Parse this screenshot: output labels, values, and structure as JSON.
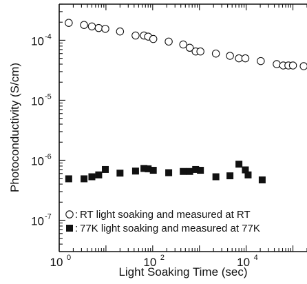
{
  "chart_data": {
    "type": "scatter",
    "x_scale": "log",
    "y_scale": "log",
    "xlim": [
      1,
      200000
    ],
    "ylim": [
      3e-08,
      0.0004
    ],
    "xlabel": "Light Soaking Time (sec)",
    "ylabel": "Photoconductivity (S/cm)",
    "x_ticks": [
      {
        "value": 1,
        "base": "10",
        "exp": "0"
      },
      {
        "value": 100,
        "base": "10",
        "exp": "2"
      },
      {
        "value": 10000,
        "base": "10",
        "exp": "4"
      }
    ],
    "y_ticks": [
      {
        "value": 1e-07,
        "base": "10",
        "exp": "-7"
      },
      {
        "value": 1e-06,
        "base": "10",
        "exp": "-6"
      },
      {
        "value": 1e-05,
        "base": "10",
        "exp": "-5"
      },
      {
        "value": 0.0001,
        "base": "10",
        "exp": "-4"
      }
    ],
    "legend_position": "bottom-left",
    "series": [
      {
        "name": "RT light soaking and measured at RT",
        "marker": "open-circle",
        "color": "#111111",
        "x": [
          1.6,
          3.4,
          5.0,
          7.0,
          9.7,
          20,
          43,
          65,
          80,
          103,
          220,
          450,
          620,
          830,
          1050,
          2250,
          4500,
          7000,
          9600,
          20500,
          45000,
          62000,
          80000,
          100000,
          170000
        ],
        "y": [
          0.000195,
          0.00018,
          0.00017,
          0.00016,
          0.000155,
          0.00014,
          0.00012,
          0.00012,
          0.000115,
          0.000105,
          9.5e-05,
          8.5e-05,
          7.5e-05,
          6.5e-05,
          6.5e-05,
          6e-05,
          5.5e-05,
          5e-05,
          5e-05,
          4.5e-05,
          4e-05,
          3.8e-05,
          3.8e-05,
          3.8e-05,
          3.7e-05
        ]
      },
      {
        "name": "77K light soaking and measured at 77K",
        "marker": "filled-square",
        "color": "#111111",
        "x": [
          1.6,
          3.4,
          5.0,
          7.0,
          9.7,
          20,
          43,
          65,
          80,
          103,
          220,
          450,
          620,
          830,
          1050,
          2250,
          4500,
          7000,
          9600,
          11000,
          22000
        ],
        "y": [
          4.9e-07,
          4.9e-07,
          5.3e-07,
          5.7e-07,
          7e-07,
          6.1e-07,
          6.6e-07,
          7.3e-07,
          7.2e-07,
          6.8e-07,
          6.2e-07,
          6.5e-07,
          6.5e-07,
          7e-07,
          6.8e-07,
          5.3e-07,
          5.5e-07,
          8.6e-07,
          6.9e-07,
          5.7e-07,
          4.7e-07
        ]
      }
    ]
  }
}
